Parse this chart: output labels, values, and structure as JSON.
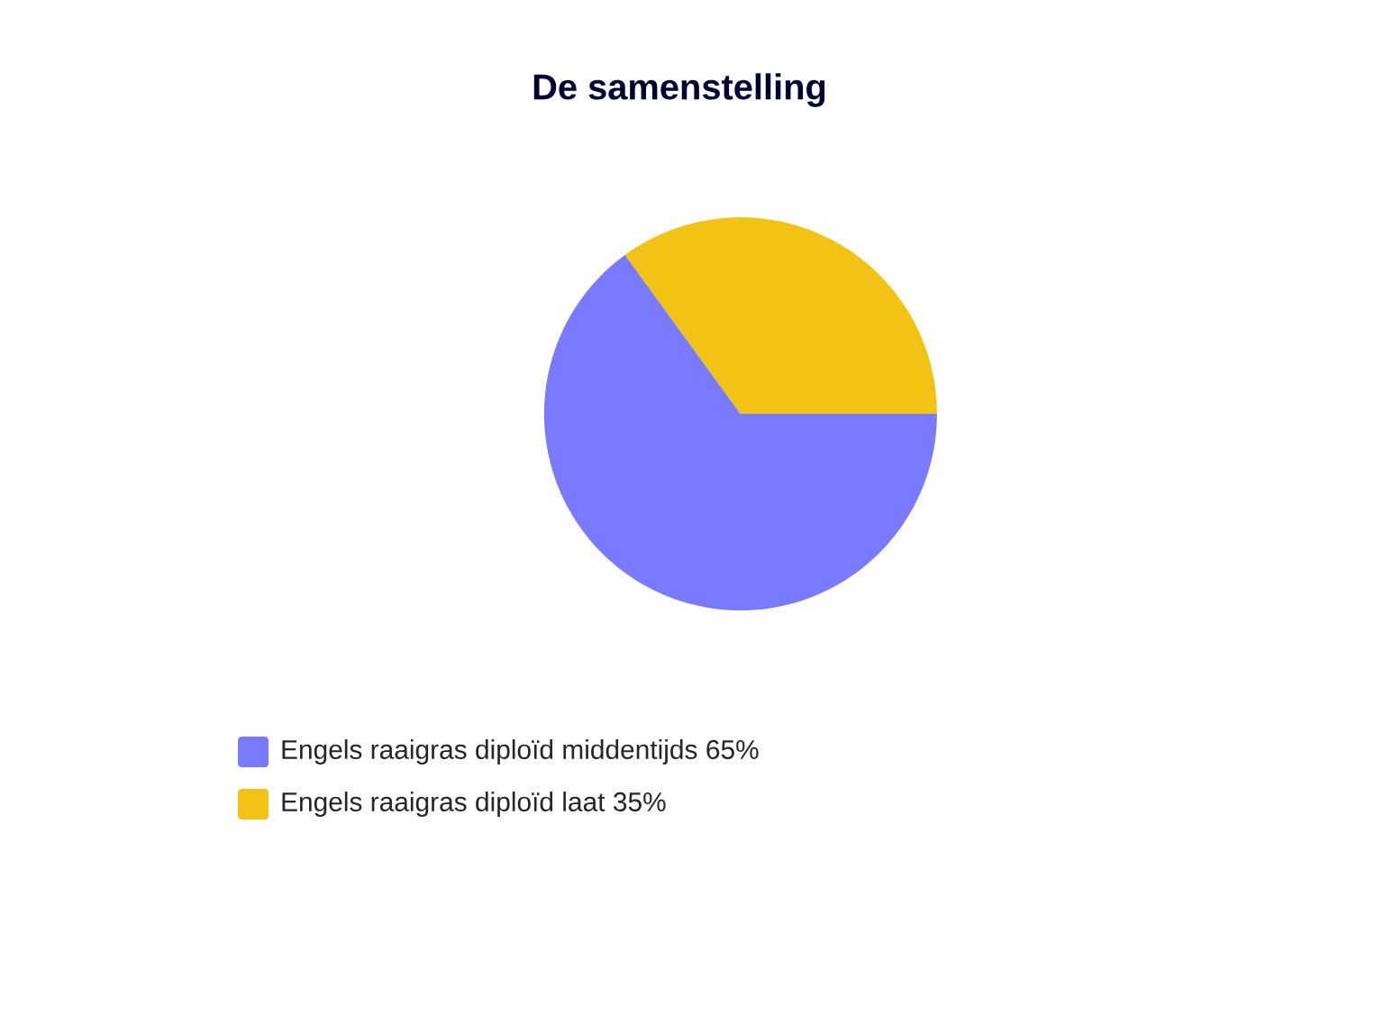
{
  "chart_data": {
    "type": "pie",
    "title": "De samenstelling",
    "categories": [
      "Engels raaigras diploïd middentijds",
      "Engels raaigras diploïd laat"
    ],
    "values": [
      65,
      35
    ],
    "value_labels": [
      "65%",
      "35%"
    ],
    "colors": [
      "#7a7aff",
      "#f2c314"
    ],
    "legend": "bottom left"
  }
}
